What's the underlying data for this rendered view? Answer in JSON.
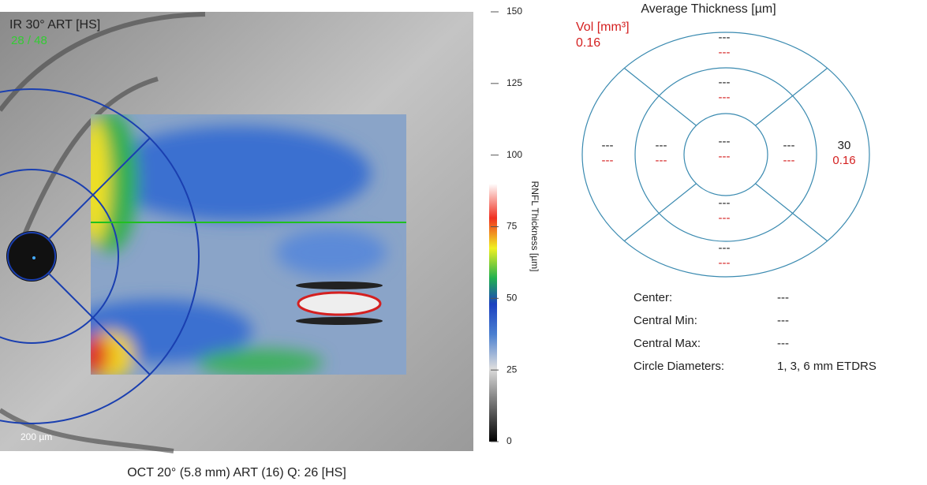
{
  "image": {
    "title": "IR 30° ART [HS]",
    "frame": "28 / 48",
    "scale": "200 µm",
    "caption": "OCT 20° (5.8 mm) ART (16) Q: 26 [HS]"
  },
  "colorbar": {
    "label": "RNFL Thickness [µm]",
    "range": [
      0,
      150
    ],
    "ticks": [
      150,
      125,
      100,
      75,
      50,
      25,
      0
    ]
  },
  "grid": {
    "title": "Average Thickness [µm]",
    "vol_label": "Vol [mm³]",
    "vol_value": "0.16",
    "sectors": [
      {
        "thickness": "---",
        "volume": "---"
      },
      {
        "thickness": "---",
        "volume": "---"
      },
      {
        "thickness": "---",
        "volume": "---"
      },
      {
        "thickness": "---",
        "volume": "---"
      },
      {
        "thickness": "---",
        "volume": "---"
      },
      {
        "thickness": "---",
        "volume": "---"
      },
      {
        "thickness": "---",
        "volume": "---"
      },
      {
        "thickness": "---",
        "volume": "---"
      },
      {
        "thickness": "30",
        "volume": "0.16"
      }
    ]
  },
  "info": {
    "rows": [
      [
        "Center:",
        "---"
      ],
      [
        "Central Min:",
        "---"
      ],
      [
        "Central Max:",
        "---"
      ],
      [
        "Circle Diameters:",
        "1, 3, 6 mm ETDRS"
      ]
    ]
  }
}
